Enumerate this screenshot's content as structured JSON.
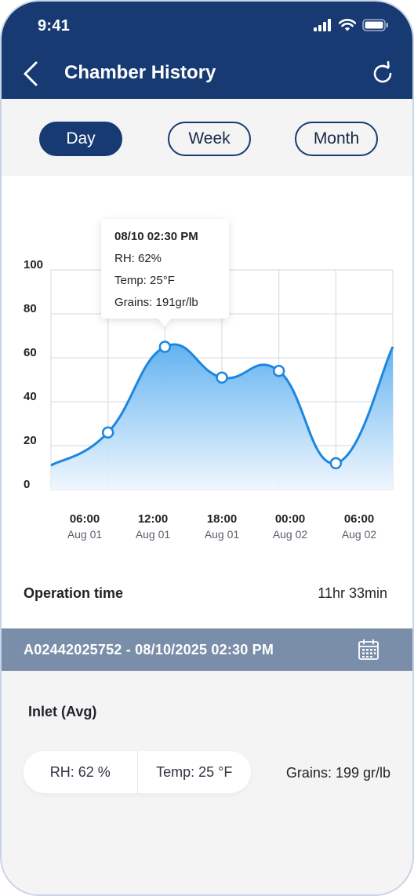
{
  "status": {
    "time": "9:41"
  },
  "header": {
    "title": "Chamber History"
  },
  "tabs": [
    {
      "label": "Day",
      "active": true
    },
    {
      "label": "Week",
      "active": false
    },
    {
      "label": "Month",
      "active": false
    }
  ],
  "tooltip": {
    "datetime": "08/10 02:30 PM",
    "rh": "RH: 62%",
    "temp": "Temp: 25°F",
    "grains": "Grains: 191gr/lb"
  },
  "chart_data": {
    "type": "area",
    "ylim": [
      0,
      100
    ],
    "y_ticks": [
      "100",
      "80",
      "60",
      "40",
      "20",
      "0"
    ],
    "x_ticks": [
      {
        "time": "06:00",
        "date": "Aug 01"
      },
      {
        "time": "12:00",
        "date": "Aug 01"
      },
      {
        "time": "18:00",
        "date": "Aug 01"
      },
      {
        "time": "00:00",
        "date": "Aug 02"
      },
      {
        "time": "06:00",
        "date": "Aug 02"
      }
    ],
    "series": [
      {
        "points": [
          {
            "x": 0,
            "y": 11
          },
          {
            "x": 1,
            "y": 26
          },
          {
            "x": 2,
            "y": 65
          },
          {
            "x": 3,
            "y": 51
          },
          {
            "x": 4,
            "y": 54
          },
          {
            "x": 5,
            "y": 12
          },
          {
            "x": 6,
            "y": 65
          }
        ],
        "markers": [
          1,
          2,
          3,
          4,
          5
        ]
      }
    ],
    "grid": true,
    "colors": {
      "line": "#1d86e0",
      "fill_top": "#5aaef0",
      "fill_bottom": "#eef6fe",
      "grid": "#dcdfe4"
    }
  },
  "operation": {
    "label": "Operation time",
    "value": "11hr 33min"
  },
  "session": {
    "text": "A02442025752 - 08/10/2025 02:30 PM"
  },
  "inlet": {
    "title": "Inlet (Avg)",
    "rh": "RH: 62 %",
    "temp": "Temp: 25 °F",
    "grains": "Grains: 199 gr/lb"
  },
  "icons": [
    "back-icon",
    "refresh-icon",
    "calendar-icon",
    "signal-icon",
    "wifi-icon",
    "battery-icon"
  ],
  "colors": {
    "primary": "#173a73",
    "session_bar": "#7a8ea9",
    "background": "#f4f4f5"
  }
}
